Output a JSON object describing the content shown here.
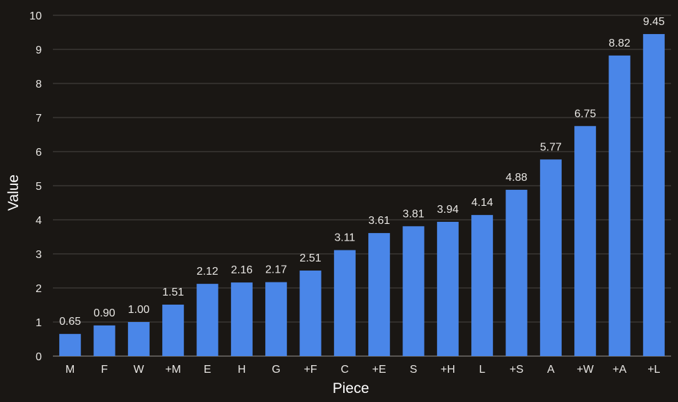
{
  "chart_data": {
    "type": "bar",
    "title": "",
    "xlabel": "Piece",
    "ylabel": "Value",
    "ylim": [
      0,
      10
    ],
    "yticks": [
      "0",
      "1",
      "2",
      "3",
      "4",
      "5",
      "6",
      "7",
      "8",
      "9",
      "10"
    ],
    "grid": true,
    "legend": "none",
    "categories": [
      "M",
      "F",
      "W",
      "+M",
      "E",
      "H",
      "G",
      "+F",
      "C",
      "+E",
      "S",
      "+H",
      "L",
      "+S",
      "A",
      "+W",
      "+A",
      "+L"
    ],
    "values": [
      0.65,
      0.9,
      1.0,
      1.51,
      2.12,
      2.16,
      2.17,
      2.51,
      3.11,
      3.61,
      3.81,
      3.94,
      4.14,
      4.88,
      5.77,
      6.75,
      8.82,
      9.45
    ],
    "value_labels": [
      "0.65",
      "0.90",
      "1.00",
      "1.51",
      "2.12",
      "2.16",
      "2.17",
      "2.51",
      "3.11",
      "3.61",
      "3.81",
      "3.94",
      "4.14",
      "4.88",
      "5.77",
      "6.75",
      "8.82",
      "9.45"
    ],
    "colors": {
      "background": "#1a1714",
      "bar": "#4a86e8",
      "grid": "#4a4744",
      "text": "#e8e6e3",
      "title": "#ffffff"
    }
  }
}
